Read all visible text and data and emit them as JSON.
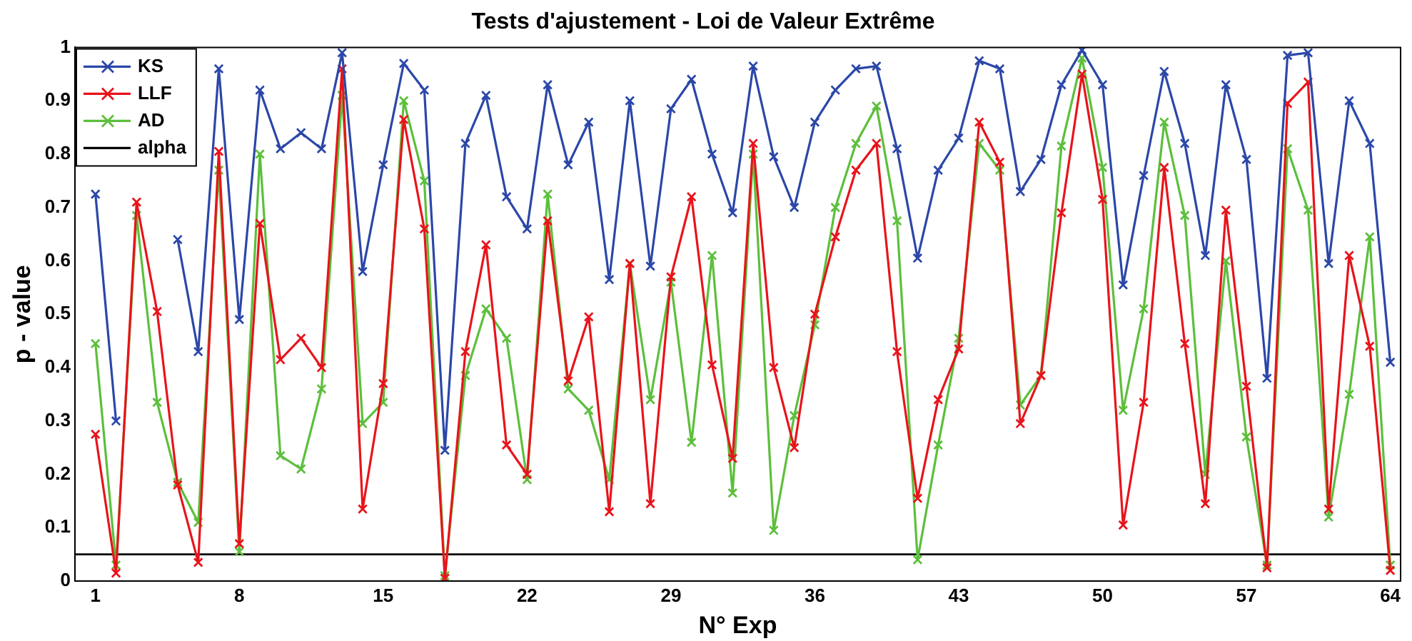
{
  "chart_data": {
    "type": "line",
    "title": "Tests d'ajustement - Loi de Valeur Extrême",
    "xlabel": "N° Exp",
    "ylabel": "p - value",
    "x": [
      1,
      2,
      3,
      4,
      5,
      6,
      7,
      8,
      9,
      10,
      11,
      12,
      13,
      14,
      15,
      16,
      17,
      18,
      19,
      20,
      21,
      22,
      23,
      24,
      25,
      26,
      27,
      28,
      29,
      30,
      31,
      32,
      33,
      34,
      35,
      36,
      37,
      38,
      39,
      40,
      41,
      42,
      43,
      44,
      45,
      46,
      47,
      48,
      49,
      50,
      51,
      52,
      53,
      54,
      55,
      56,
      57,
      58,
      59,
      60,
      61,
      62,
      63,
      64
    ],
    "series": [
      {
        "name": "KS",
        "color": "#2b47a8",
        "values": [
          0.725,
          0.3,
          null,
          null,
          0.64,
          0.43,
          0.96,
          0.49,
          0.92,
          0.81,
          0.84,
          0.81,
          0.99,
          0.58,
          0.78,
          0.97,
          0.92,
          0.245,
          0.82,
          0.91,
          0.72,
          0.66,
          0.93,
          0.78,
          0.86,
          0.565,
          0.9,
          0.59,
          0.885,
          0.94,
          0.8,
          0.69,
          0.965,
          0.795,
          0.7,
          0.86,
          0.92,
          0.96,
          0.965,
          0.81,
          0.605,
          0.77,
          0.83,
          0.975,
          0.96,
          0.73,
          0.79,
          0.93,
          0.995,
          0.93,
          0.555,
          0.76,
          0.955,
          0.82,
          0.61,
          0.93,
          0.79,
          0.38,
          0.985,
          0.99,
          0.595,
          0.9,
          0.82,
          0.41
        ]
      },
      {
        "name": "LLF",
        "color": "#e8141b",
        "values": [
          0.275,
          0.015,
          0.71,
          0.505,
          0.18,
          0.035,
          0.805,
          0.07,
          0.67,
          0.415,
          0.455,
          0.4,
          0.96,
          0.135,
          0.37,
          0.865,
          0.66,
          0.005,
          0.43,
          0.63,
          0.255,
          0.2,
          0.675,
          0.375,
          0.495,
          0.13,
          0.595,
          0.145,
          0.57,
          0.72,
          0.405,
          0.23,
          0.82,
          0.4,
          0.25,
          0.5,
          0.645,
          0.77,
          0.82,
          0.43,
          0.155,
          0.34,
          0.435,
          0.86,
          0.785,
          0.295,
          0.385,
          0.69,
          0.95,
          0.715,
          0.105,
          0.335,
          0.775,
          0.445,
          0.145,
          0.695,
          0.365,
          0.025,
          0.895,
          0.935,
          0.135,
          0.61,
          0.44,
          0.02
        ]
      },
      {
        "name": "AD",
        "color": "#5cbf3c",
        "values": [
          0.445,
          0.03,
          0.685,
          0.335,
          0.185,
          0.11,
          0.77,
          0.055,
          0.8,
          0.235,
          0.21,
          0.36,
          0.91,
          0.295,
          0.335,
          0.9,
          0.75,
          0.01,
          0.385,
          0.51,
          0.455,
          0.19,
          0.725,
          0.36,
          0.32,
          0.19,
          0.595,
          0.34,
          0.56,
          0.26,
          0.61,
          0.165,
          0.8,
          0.095,
          0.31,
          0.48,
          0.7,
          0.82,
          0.89,
          0.675,
          0.04,
          0.255,
          0.455,
          0.82,
          0.77,
          0.33,
          0.385,
          0.815,
          0.98,
          0.775,
          0.32,
          0.51,
          0.86,
          0.685,
          0.2,
          0.6,
          0.27,
          0.03,
          0.81,
          0.695,
          0.12,
          0.35,
          0.645,
          0.03
        ]
      }
    ],
    "ref_lines": [
      {
        "axis": "y",
        "value": 0.05,
        "label": "alpha",
        "color": "#000000"
      }
    ],
    "xlim": [
      0,
      64.5
    ],
    "xticks": [
      1,
      8,
      15,
      22,
      29,
      36,
      43,
      50,
      57,
      64
    ],
    "ylim": [
      0,
      1
    ],
    "yticks": [
      0,
      0.1,
      0.2,
      0.3,
      0.4,
      0.5,
      0.6,
      0.7,
      0.8,
      0.9,
      1
    ],
    "marker": "cross",
    "line_style": "solid",
    "grid": false,
    "legend": "top left"
  }
}
